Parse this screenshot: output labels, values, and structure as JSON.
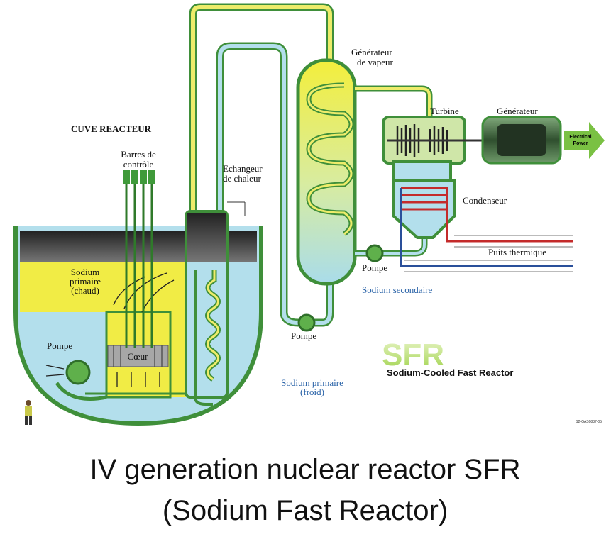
{
  "diagram": {
    "labels": {
      "steam_generator": [
        "Générateur",
        "de vapeur"
      ],
      "turbine": "Turbine",
      "generator": "Générateur",
      "electrical_power": [
        "Electrical",
        "Power"
      ],
      "reactor_vessel": "CUVE REACTEUR",
      "control_rods": [
        "Barres de",
        "contrôle"
      ],
      "heat_exchanger": [
        "Echangeur",
        "de chaleur"
      ],
      "condenser": "Condenseur",
      "heat_sink": "Puits thermique",
      "pump_water": "Pompe",
      "pump_secondary": "Pompe",
      "pump_primary": "Pompe",
      "hot_sodium": [
        "Sodium",
        "primaire",
        "(chaud)"
      ],
      "secondary_sodium": "Sodium secondaire",
      "core": "Cœur",
      "cold_sodium": [
        "Sodium primaire",
        "(froid)"
      ],
      "logo": "SFR",
      "logo_subtitle": "Sodium-Cooled Fast Reactor",
      "reference": "S2-GAS0837-05"
    },
    "caption": [
      "IV generation nuclear reactor SFR",
      "(Sodium Fast Reactor)"
    ]
  }
}
